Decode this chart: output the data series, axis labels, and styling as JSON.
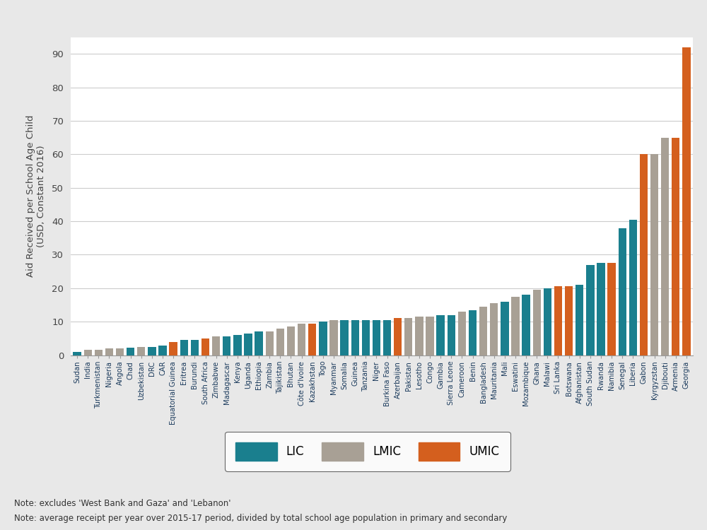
{
  "countries": [
    "Sudan",
    "India",
    "Turkmenistan",
    "Nigeria",
    "Angola",
    "Chad",
    "Uzbekistan",
    "DRC",
    "CAR",
    "Equatorial Guinea",
    "Eritrea",
    "Burundi",
    "South Africa",
    "Zimbabwe",
    "Madagascar",
    "Kenya",
    "Uganda",
    "Ethiopia",
    "Zambia",
    "Tajikistan",
    "Bhutan",
    "Côte d'Ivoire",
    "Kazakhstan",
    "Togo",
    "Myanmar",
    "Somalia",
    "Guinea",
    "Tanzania",
    "Niger",
    "Burkina Faso",
    "Azerbaijan",
    "Pakistan",
    "Lesotho",
    "Congo",
    "Gambia",
    "Sierra Leone",
    "Cameroon",
    "Benin",
    "Bangladesh",
    "Mauritania",
    "Mali",
    "Eswatini",
    "Mozambique",
    "Ghana",
    "Malawi",
    "Sri Lanka",
    "Botswana",
    "Afghanistan",
    "South Sudan",
    "Rwanda",
    "Namibia",
    "Senegal",
    "Liberia",
    "Gabon",
    "Kyrgyzstan",
    "Djibouti",
    "Armenia",
    "Georgia"
  ],
  "values": [
    1.0,
    1.5,
    1.5,
    2.0,
    2.0,
    2.2,
    2.5,
    2.5,
    2.8,
    4.0,
    4.5,
    4.5,
    5.0,
    5.5,
    5.5,
    6.0,
    6.5,
    7.0,
    7.0,
    8.0,
    8.5,
    9.5,
    9.5,
    10.0,
    10.5,
    10.5,
    10.5,
    10.5,
    10.5,
    10.5,
    11.0,
    11.0,
    11.5,
    11.5,
    12.0,
    12.0,
    13.0,
    13.5,
    14.5,
    15.5,
    16.0,
    17.5,
    18.0,
    19.5,
    20.0,
    20.5,
    20.5,
    21.0,
    27.0,
    27.5,
    27.5,
    38.0,
    40.5,
    60.0,
    60.0,
    65.0,
    65.0,
    92.0
  ],
  "income_groups": [
    "LIC",
    "LMIC",
    "LMIC",
    "LMIC",
    "LMIC",
    "LIC",
    "LMIC",
    "LIC",
    "LIC",
    "UMIC",
    "LIC",
    "LIC",
    "UMIC",
    "LMIC",
    "LIC",
    "LIC",
    "LIC",
    "LIC",
    "LMIC",
    "LMIC",
    "LMIC",
    "LMIC",
    "UMIC",
    "LIC",
    "LMIC",
    "LIC",
    "LIC",
    "LIC",
    "LIC",
    "LIC",
    "UMIC",
    "LMIC",
    "LMIC",
    "LMIC",
    "LIC",
    "LIC",
    "LMIC",
    "LIC",
    "LMIC",
    "LMIC",
    "LIC",
    "LMIC",
    "LIC",
    "LMIC",
    "LIC",
    "UMIC",
    "UMIC",
    "LIC",
    "LIC",
    "LIC",
    "UMIC",
    "LIC",
    "LIC",
    "UMIC",
    "LMIC",
    "LMIC",
    "UMIC",
    "UMIC"
  ],
  "colors": {
    "LIC": "#1a7f8e",
    "LMIC": "#a8a095",
    "UMIC": "#d45f1e"
  },
  "ylabel": "Aid Received per School Age Child\n(USD, Constant 2016)",
  "ylim": [
    0,
    95
  ],
  "yticks": [
    0,
    10,
    20,
    30,
    40,
    50,
    60,
    70,
    80,
    90
  ],
  "note1": "Note: excludes 'West Bank and Gaza' and 'Lebanon'",
  "note2": "Note: average receipt per year over 2015-17 period, divided by total school age population in primary and secondary",
  "bg_color": "#e8e8e8",
  "plot_bg_color": "#ffffff"
}
